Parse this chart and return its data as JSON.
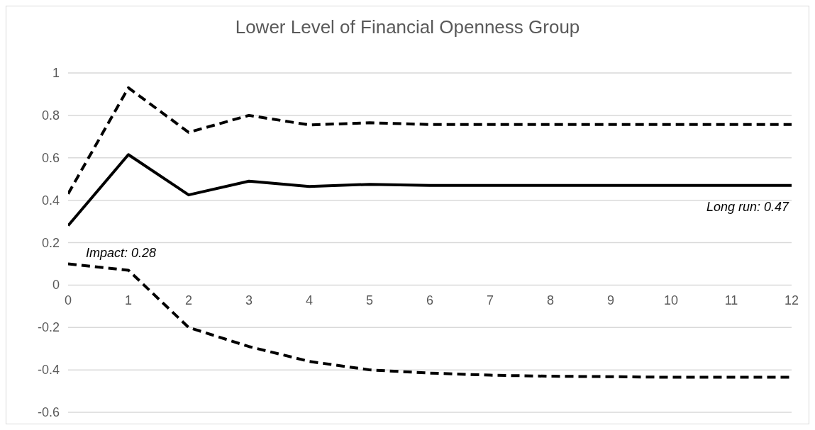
{
  "chart_data": {
    "type": "line",
    "title": "Lower Level of Financial Openness Group",
    "x": [
      0,
      1,
      2,
      3,
      4,
      5,
      6,
      7,
      8,
      9,
      10,
      11,
      12
    ],
    "series": [
      {
        "color": "#000000",
        "line_style": "dashed",
        "values": [
          0.43,
          0.93,
          0.72,
          0.8,
          0.755,
          0.765,
          0.757,
          0.757,
          0.757,
          0.757,
          0.757,
          0.757,
          0.757
        ]
      },
      {
        "color": "#000000",
        "line_style": "solid",
        "values": [
          0.28,
          0.615,
          0.425,
          0.49,
          0.465,
          0.475,
          0.47,
          0.47,
          0.47,
          0.47,
          0.47,
          0.47,
          0.47
        ]
      },
      {
        "color": "#000000",
        "line_style": "dashed",
        "values": [
          0.1,
          0.07,
          -0.2,
          -0.29,
          -0.36,
          -0.4,
          -0.415,
          -0.425,
          -0.43,
          -0.432,
          -0.435,
          -0.435,
          -0.435
        ]
      }
    ],
    "xlim": [
      0,
      12
    ],
    "xticks": [
      0,
      1,
      2,
      3,
      4,
      5,
      6,
      7,
      8,
      9,
      10,
      11,
      12
    ],
    "ylim": [
      -0.6,
      1
    ],
    "yticks": [
      -0.6,
      -0.4,
      -0.2,
      0,
      0.2,
      0.4,
      0.6,
      0.8,
      1
    ],
    "grid": "y",
    "marker": "none",
    "legend": false,
    "annotations": [
      {
        "text": "Impact: 0.28",
        "x": 0,
        "y": 0.28
      },
      {
        "text": "Long run: 0.47",
        "x": 12,
        "y": 0.47
      }
    ]
  }
}
